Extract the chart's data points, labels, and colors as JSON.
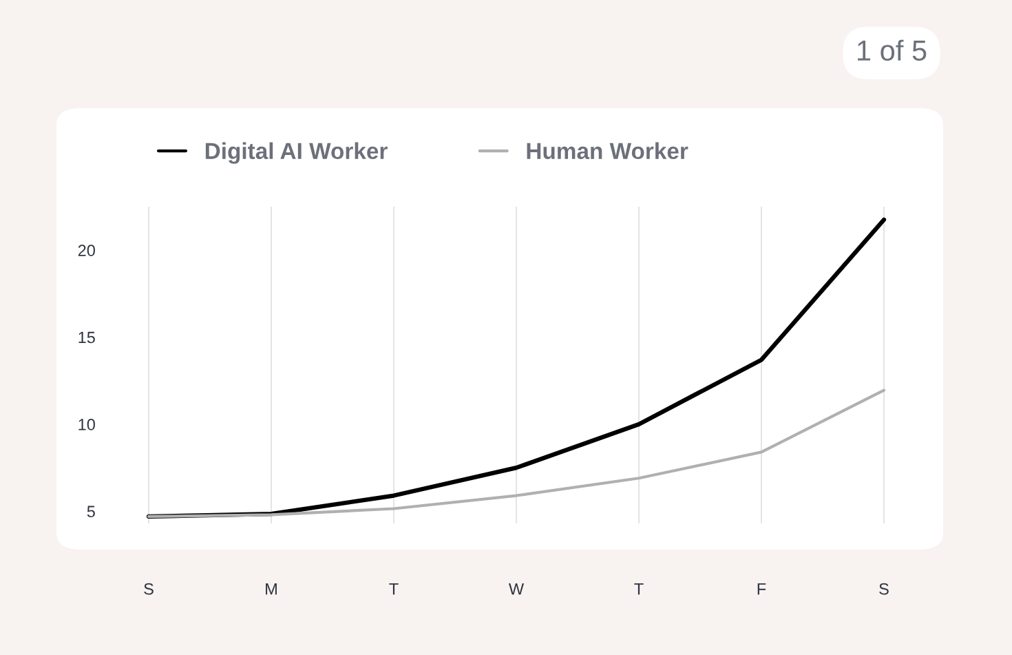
{
  "chart_data": {
    "type": "line",
    "categories": [
      "S",
      "M",
      "T",
      "W",
      "T",
      "F",
      "S"
    ],
    "ylim": [
      4.3,
      22.5
    ],
    "yticks": [
      5,
      10,
      15,
      20
    ],
    "series": [
      {
        "name": "Digital AI Worker",
        "color": "#000000",
        "values": [
          4.7,
          4.85,
          5.9,
          7.5,
          10.0,
          13.7,
          21.75
        ]
      },
      {
        "name": "Human Worker",
        "color": "#b0b0b0",
        "values": [
          4.7,
          4.8,
          5.15,
          5.9,
          6.9,
          8.4,
          11.95
        ]
      }
    ],
    "grid": "x",
    "legend": "top left",
    "marker": "none",
    "line_style": "solid",
    "annotations": [
      "1 of 5"
    ]
  }
}
